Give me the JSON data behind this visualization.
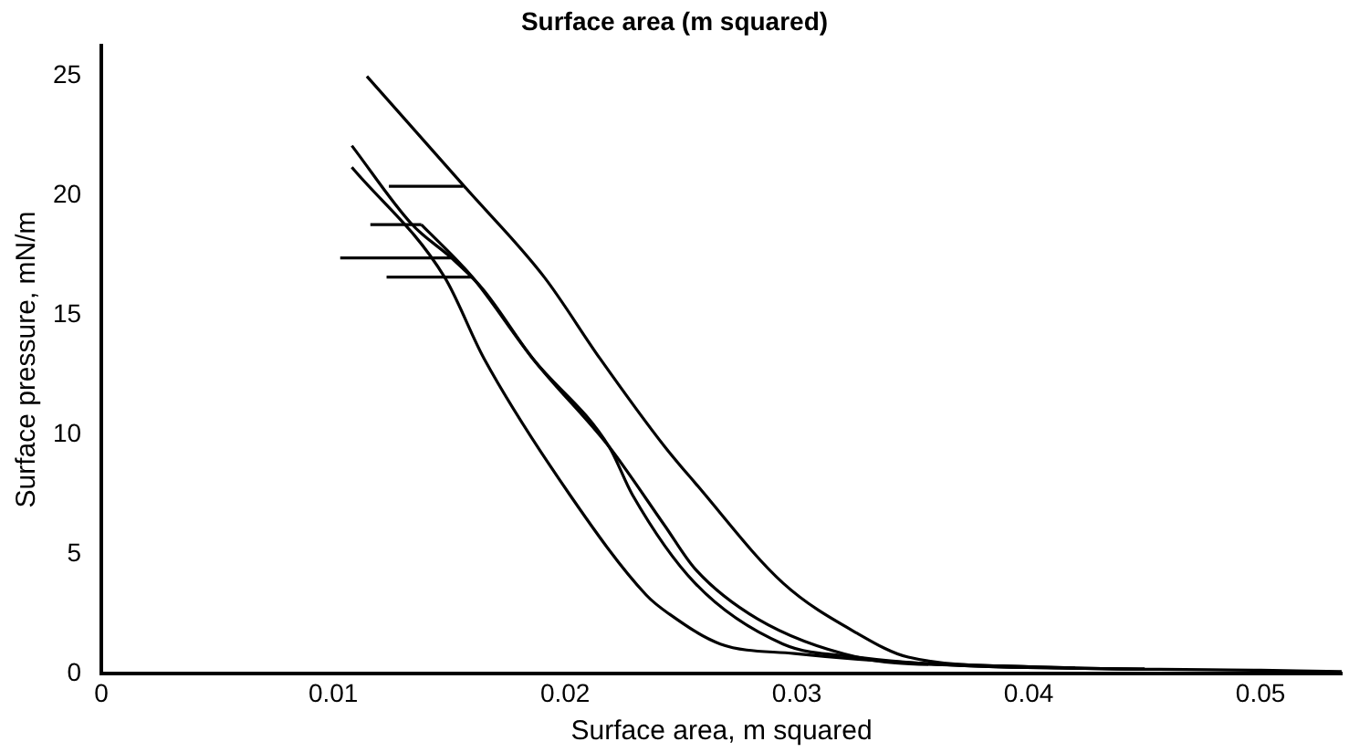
{
  "chart_data": {
    "type": "line",
    "title": "Surface area (m squared)",
    "xlabel": "Surface area, m squared",
    "ylabel": "Surface pressure, mN/m",
    "xlim": [
      0,
      0.0535
    ],
    "ylim": [
      0,
      26.3
    ],
    "xticks": [
      {
        "value": 0,
        "label": "0"
      },
      0.01,
      0.02,
      0.03,
      0.04,
      0.05
    ],
    "yticks": [
      0,
      5,
      10,
      15,
      20,
      25
    ],
    "grid": false,
    "legend": false,
    "marker": "none",
    "line_style": "solid",
    "series": [
      {
        "color": "#000000",
        "x": [
          0.01145,
          0.01565,
          0.0191,
          0.0215,
          0.0243,
          0.0256,
          0.0294,
          0.0326,
          0.0348,
          0.04,
          0.05,
          0.0535
        ],
        "values": [
          25,
          20.4,
          16.6,
          13.2,
          9.5,
          8.0,
          3.8,
          1.7,
          0.7,
          0.3,
          0.15,
          0.1
        ]
      },
      {
        "color": "#000000",
        "x": [
          0.0108,
          0.0134,
          0.0151,
          0.01645,
          0.0186,
          0.0219,
          0.0243,
          0.0256,
          0.0283,
          0.0326,
          0.037,
          0.045
        ],
        "values": [
          22.1,
          18.8,
          17.4,
          16.1,
          13.2,
          9.5,
          6.2,
          4.4,
          2.3,
          0.7,
          0.35,
          0.2
        ]
      },
      {
        "color": "#000000",
        "x": [
          0.0138,
          0.016,
          0.0186,
          0.0219,
          0.0229,
          0.0256,
          0.0294,
          0.0326,
          0.037,
          0.045
        ],
        "values": [
          18.8,
          16.6,
          13.2,
          9.5,
          7.5,
          3.8,
          1.25,
          0.7,
          0.35,
          0.2
        ]
      },
      {
        "color": "#000000",
        "x": [
          0.0108,
          0.0148,
          0.0165,
          0.0202,
          0.0235,
          0.0245,
          0.0267,
          0.0299,
          0.0352,
          0.042
        ],
        "values": [
          21.2,
          16.6,
          13.2,
          7.5,
          3.3,
          2.5,
          1.25,
          0.85,
          0.45,
          0.25
        ]
      },
      {
        "color": "#000000",
        "x": [
          0.0124,
          0.0156
        ],
        "values": [
          20.4,
          20.4
        ]
      },
      {
        "color": "#000000",
        "x": [
          0.0116,
          0.0138
        ],
        "values": [
          18.8,
          18.8
        ]
      },
      {
        "color": "#000000",
        "x": [
          0.0103,
          0.0151
        ],
        "values": [
          17.4,
          17.4
        ]
      },
      {
        "color": "#000000",
        "x": [
          0.0123,
          0.016
        ],
        "values": [
          16.6,
          16.6
        ]
      }
    ]
  }
}
